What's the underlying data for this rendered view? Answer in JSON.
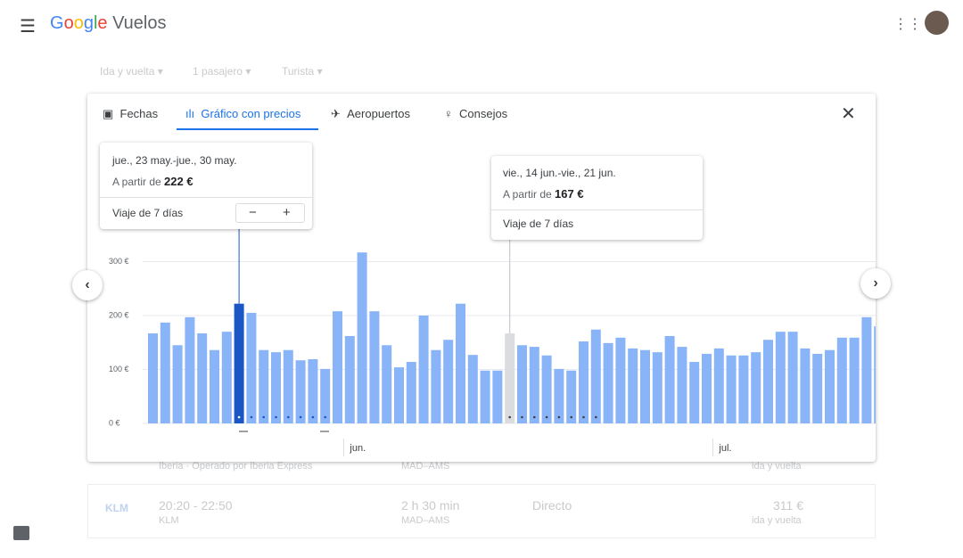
{
  "header": {
    "logo": "Google",
    "product": "Vuelos"
  },
  "filters": [
    "Ida y vuelta",
    "1 pasajero",
    "Turista"
  ],
  "tabs": [
    "Fechas",
    "Gráfico con precios",
    "Aeropuertos",
    "Consejos"
  ],
  "tooltips": [
    {
      "dates": "jue., 23 may.-jue., 30 may.",
      "prefix": "A partir de",
      "price": "222 €",
      "trip": "Viaje de 7 días"
    },
    {
      "dates": "vie., 14 jun.-vie., 21 jun.",
      "prefix": "A partir de",
      "price": "167 €",
      "trip": "Viaje de 7 días"
    }
  ],
  "chart": {
    "type": "bar",
    "values": [
      167,
      187,
      145,
      197,
      167,
      136,
      170,
      222,
      205,
      136,
      132,
      136,
      117,
      119,
      101,
      208,
      162,
      317,
      208,
      145,
      104,
      114,
      200,
      136,
      155,
      222,
      127,
      98,
      98,
      167,
      145,
      142,
      126,
      101,
      98,
      152,
      174,
      149,
      159,
      139,
      136,
      132,
      162,
      142,
      114,
      129,
      139,
      126,
      126,
      132,
      155,
      170,
      170,
      139,
      129,
      136,
      159,
      159,
      197,
      180
    ],
    "ylim": [
      0,
      330
    ],
    "yticks": [
      {
        "value": 0,
        "label": "0 €"
      },
      {
        "value": 100,
        "label": "100 €"
      },
      {
        "value": 200,
        "label": "200 €"
      },
      {
        "value": 300,
        "label": "300 €"
      }
    ],
    "months": [
      "jun.",
      "jul."
    ],
    "color": "#8ab4f8",
    "selected": {
      "index": 7,
      "color": "#1a56c4"
    },
    "hover": {
      "index": 29,
      "color": "#dadce0"
    }
  },
  "results": [
    {
      "airline": "Iberia · Operado por Iberia Express",
      "route": "MAD–AMS",
      "fare": "ida y vuelta"
    },
    {
      "logo": "KLM",
      "times": "20:20 - 22:50",
      "airline": "KLM",
      "duration": "2 h 30 min",
      "route": "MAD–AMS",
      "stops": "Directo",
      "price": "311 €",
      "fare": "ida y vuelta"
    }
  ]
}
